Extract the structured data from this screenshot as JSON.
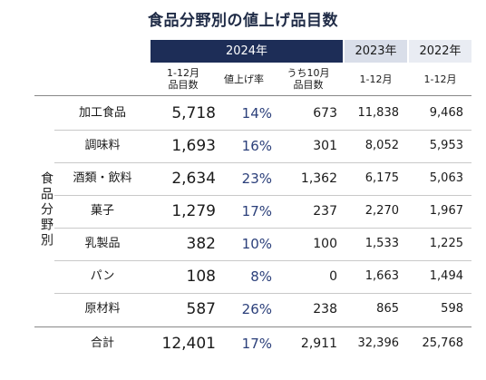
{
  "title": "食品分野別の値上げ品目数",
  "years": {
    "y2024": "2024年",
    "y2023": "2023年",
    "y2022": "2022年"
  },
  "subheaders": {
    "count_2024": "1-12月\n品目数",
    "rate_2024": "値上げ率",
    "oct_2024": "うち10月\n品目数",
    "range_2023": "1-12月",
    "range_2022": "1-12月"
  },
  "side_label": "食品分野別",
  "rows": [
    {
      "category": "加工食品",
      "count_2024": "5,718",
      "rate": "14%",
      "oct": "673",
      "y2023": "11,838",
      "y2022": "9,468"
    },
    {
      "category": "調味料",
      "count_2024": "1,693",
      "rate": "16%",
      "oct": "301",
      "y2023": "8,052",
      "y2022": "5,953"
    },
    {
      "category": "酒類・飲料",
      "count_2024": "2,634",
      "rate": "23%",
      "oct": "1,362",
      "y2023": "6,175",
      "y2022": "5,063"
    },
    {
      "category": "菓子",
      "count_2024": "1,279",
      "rate": "17%",
      "oct": "237",
      "y2023": "2,270",
      "y2022": "1,967"
    },
    {
      "category": "乳製品",
      "count_2024": "382",
      "rate": "10%",
      "oct": "100",
      "y2023": "1,533",
      "y2022": "1,225"
    },
    {
      "category": "パン",
      "count_2024": "108",
      "rate": "8%",
      "oct": "0",
      "y2023": "1,663",
      "y2022": "1,494"
    },
    {
      "category": "原材料",
      "count_2024": "587",
      "rate": "26%",
      "oct": "238",
      "y2023": "865",
      "y2022": "598"
    }
  ],
  "total": {
    "category": "合計",
    "count_2024": "12,401",
    "rate": "17%",
    "oct": "2,911",
    "y2023": "32,396",
    "y2022": "25,768"
  },
  "colors": {
    "header_2024": "#1d2d57",
    "header_2023": "#d9dee9",
    "header_2022": "#e9ecf3",
    "rate_text": "#2b3f7a"
  }
}
